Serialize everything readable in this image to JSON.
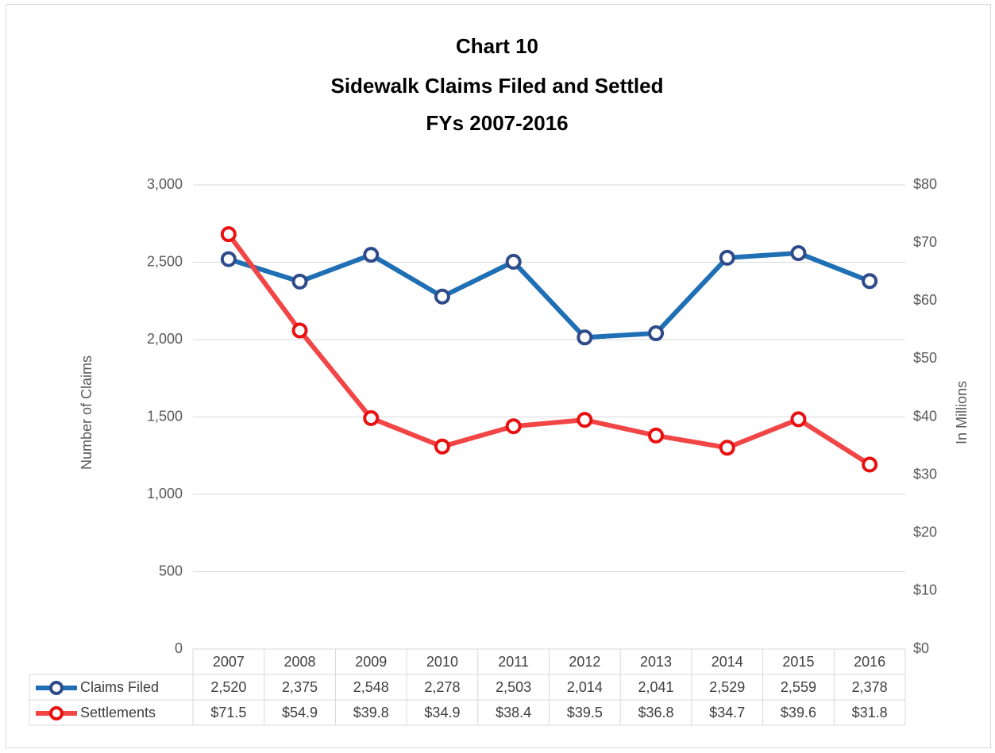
{
  "chart_data": {
    "type": "line",
    "title": [
      "Chart 10",
      "Sidewalk Claims Filed and Settled",
      "FYs 2007-2016"
    ],
    "ylabel": "Number of Claims",
    "y2label": "In Millions",
    "categories": [
      "2007",
      "2008",
      "2009",
      "2010",
      "2011",
      "2012",
      "2013",
      "2014",
      "2015",
      "2016"
    ],
    "series": [
      {
        "name": "Claims Filed",
        "color": "#1f6fb5",
        "marker_color": "#2f4b8a",
        "axis": "y",
        "values": [
          2520,
          2375,
          2548,
          2278,
          2503,
          2014,
          2041,
          2529,
          2559,
          2378
        ],
        "value_labels": [
          "2,520",
          "2,375",
          "2,548",
          "2,278",
          "2,503",
          "2,014",
          "2,041",
          "2,529",
          "2,559",
          "2,378"
        ]
      },
      {
        "name": "Settlements",
        "color": "#f24545",
        "marker_color": "#e81010",
        "axis": "y2",
        "values": [
          71.5,
          54.9,
          39.8,
          34.9,
          38.4,
          39.5,
          36.8,
          34.7,
          39.6,
          31.8
        ],
        "value_labels": [
          "$71.5",
          "$54.9",
          "$39.8",
          "$34.9",
          "$38.4",
          "$39.5",
          "$36.8",
          "$34.7",
          "$39.6",
          "$31.8"
        ]
      }
    ],
    "ylim": [
      0,
      3000
    ],
    "yticks": [
      0,
      500,
      {
        "value": 1000,
        "label": "1,000"
      },
      {
        "value": 1500,
        "label": "1,500"
      },
      {
        "value": 2000,
        "label": "2,000"
      },
      {
        "value": 2500,
        "label": "2,500"
      },
      {
        "value": 3000,
        "label": "3,000"
      }
    ],
    "y2lim": [
      0,
      80
    ],
    "y2ticks": [
      {
        "value": 0,
        "label": "$0"
      },
      {
        "value": 10,
        "label": "$10"
      },
      {
        "value": 20,
        "label": "$20"
      },
      {
        "value": 30,
        "label": "$30"
      },
      {
        "value": 40,
        "label": "$40"
      },
      {
        "value": 50,
        "label": "$50"
      },
      {
        "value": 60,
        "label": "$60"
      },
      {
        "value": 70,
        "label": "$70"
      },
      {
        "value": 80,
        "label": "$80"
      }
    ],
    "grid": true
  }
}
